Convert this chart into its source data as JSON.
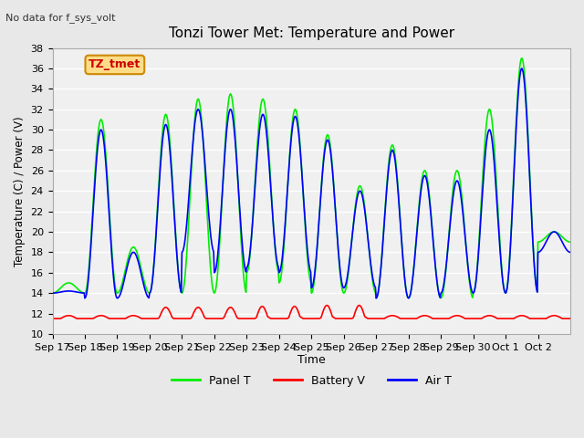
{
  "title": "Tonzi Tower Met: Temperature and Power",
  "subtitle": "No data for f_sys_volt",
  "ylabel": "Temperature (C) / Power (V)",
  "xlabel": "Time",
  "ylim": [
    10,
    38
  ],
  "yticks": [
    10,
    12,
    14,
    16,
    18,
    20,
    22,
    24,
    26,
    28,
    30,
    32,
    34,
    36,
    38
  ],
  "xtick_labels": [
    "Sep 17",
    "Sep 18",
    "Sep 19",
    "Sep 20",
    "Sep 21",
    "Sep 22",
    "Sep 23",
    "Sep 24",
    "Sep 25",
    "Sep 26",
    "Sep 27",
    "Sep 28",
    "Sep 29",
    "Sep 30",
    "Oct 1",
    "Oct 2"
  ],
  "legend_labels": [
    "Panel T",
    "Battery V",
    "Air T"
  ],
  "annotation_label": "TZ_tmet",
  "annotation_box_color": "#ffdd88",
  "annotation_box_border": "#cc8800",
  "panel_t_color": "#00ee00",
  "battery_v_color": "#ff0000",
  "air_t_color": "#0000ff",
  "bg_color": "#e8e8e8",
  "plot_bg_color": "#f0f0f0",
  "grid_color": "#ffffff",
  "n_days": 16,
  "points_per_day": 48,
  "panel_peaks": [
    15,
    31,
    18.5,
    31.5,
    33,
    33.5,
    33,
    32,
    29.5,
    24.5,
    28.5,
    26,
    26,
    32,
    37,
    20
  ],
  "panel_troughs": [
    14,
    14,
    14,
    14,
    14,
    14,
    16,
    15,
    14,
    14,
    13.5,
    13.5,
    13.5,
    14,
    14,
    19
  ],
  "air_peaks": [
    14.2,
    30,
    18,
    30.5,
    32,
    32,
    31.5,
    31.3,
    29,
    24,
    28,
    25.5,
    25,
    30,
    36,
    20
  ],
  "air_troughs": [
    14,
    13.5,
    13.5,
    14,
    18,
    16,
    16.5,
    16,
    14.5,
    14.5,
    13.5,
    13.5,
    14,
    14,
    14,
    18
  ]
}
